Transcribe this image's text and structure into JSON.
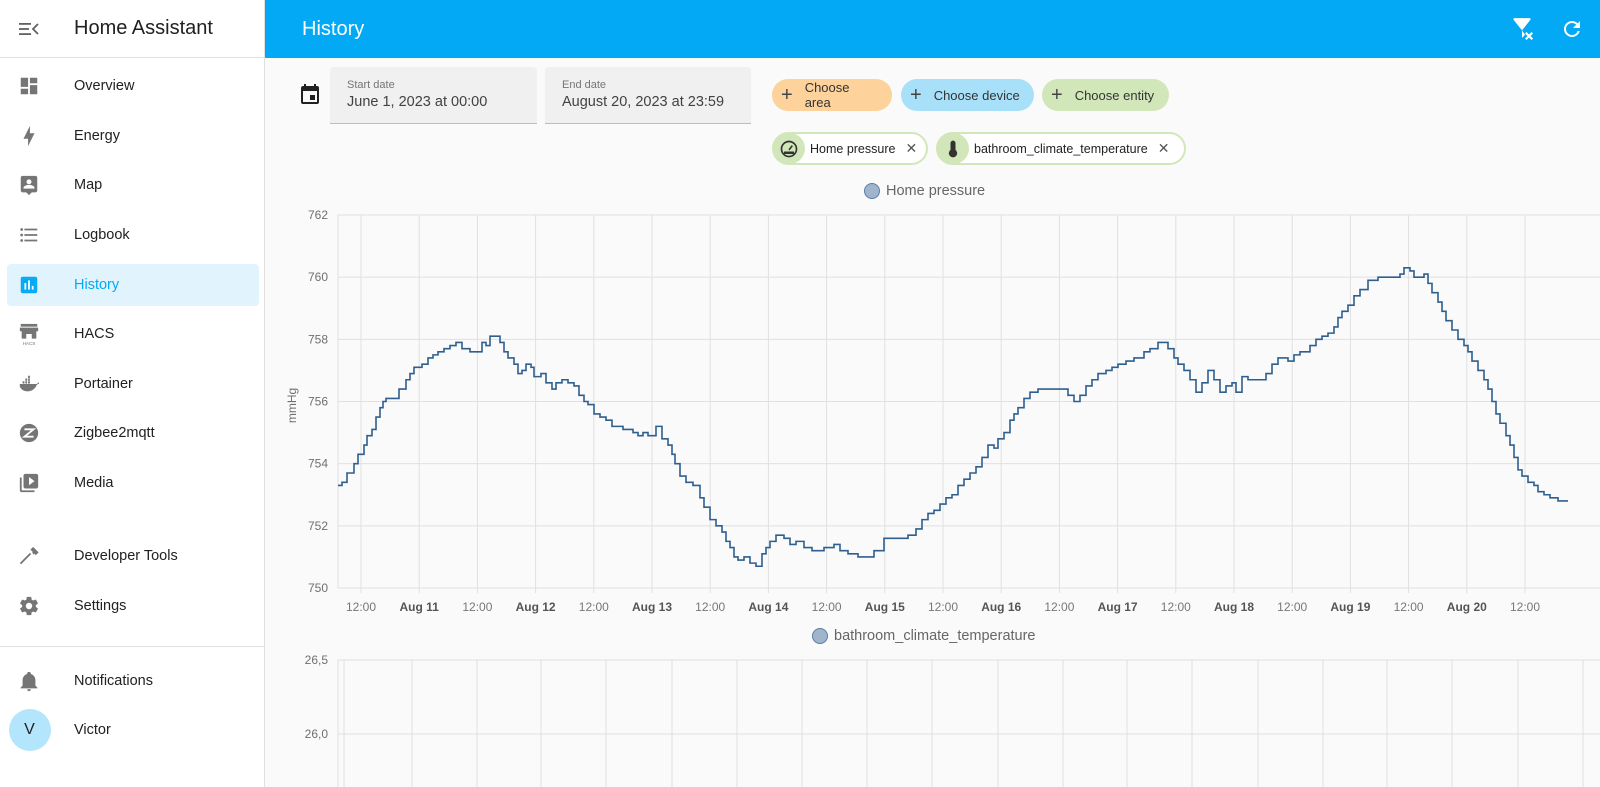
{
  "sidebar": {
    "title": "Home Assistant",
    "items": [
      {
        "label": "Overview",
        "icon": "dashboard-icon"
      },
      {
        "label": "Energy",
        "icon": "lightning-bolt-icon"
      },
      {
        "label": "Map",
        "icon": "map-account-icon"
      },
      {
        "label": "Logbook",
        "icon": "format-list-icon"
      },
      {
        "label": "History",
        "icon": "chart-box-icon",
        "active": true
      },
      {
        "label": "HACS",
        "icon": "hacs-store-icon"
      },
      {
        "label": "Portainer",
        "icon": "docker-icon"
      },
      {
        "label": "Zigbee2mqtt",
        "icon": "zigbee-icon"
      },
      {
        "label": "Media",
        "icon": "play-box-multiple-icon"
      },
      {
        "label": "Developer Tools",
        "icon": "hammer-icon"
      },
      {
        "label": "Settings",
        "icon": "cog-icon"
      }
    ],
    "notifications": "Notifications",
    "user": {
      "name": "Victor",
      "initial": "V"
    }
  },
  "header": {
    "title": "History",
    "actions": [
      {
        "icon": "filter-remove-icon"
      },
      {
        "icon": "refresh-icon"
      }
    ]
  },
  "filters": {
    "start_date": {
      "label": "Start date",
      "value": "June 1, 2023 at 00:00"
    },
    "end_date": {
      "label": "End date",
      "value": "August 20, 2023 at 23:59"
    },
    "choose_area": "Choose area",
    "choose_device": "Choose device",
    "choose_entity": "Choose entity",
    "selected_entities": [
      {
        "name": "Home pressure",
        "icon": "gauge-icon"
      },
      {
        "name": "bathroom_climate_temperature",
        "icon": "thermometer-icon"
      }
    ]
  },
  "colors": {
    "accent": "#03a9f4",
    "line": "#2e5f8f",
    "area_chip": "#fdd29b",
    "device_chip": "#a9e0f9",
    "entity_chip": "#d2e7b9"
  },
  "chart_data": [
    {
      "type": "line",
      "title": "Home pressure",
      "legend": [
        "Home pressure"
      ],
      "xlabel": "",
      "ylabel": "mmHg",
      "ylim": [
        750,
        762
      ],
      "yticks": [
        "762",
        "760",
        "758",
        "756",
        "754",
        "752",
        "750"
      ],
      "xticks": [
        "12:00",
        "Aug 11",
        "12:00",
        "Aug 12",
        "12:00",
        "Aug 13",
        "12:00",
        "Aug 14",
        "12:00",
        "Aug 15",
        "12:00",
        "Aug 16",
        "12:00",
        "Aug 17",
        "12:00",
        "Aug 18",
        "12:00",
        "Aug 19",
        "12:00",
        "Aug 20",
        "12:00"
      ],
      "grid": true,
      "step": true,
      "series": [
        {
          "name": "Home pressure",
          "points": [
            [
              0,
              753.3
            ],
            [
              4,
              753.4
            ],
            [
              9,
              753.7
            ],
            [
              16,
              754.0
            ],
            [
              20,
              754.3
            ],
            [
              26,
              754.6
            ],
            [
              29,
              754.9
            ],
            [
              34,
              755.1
            ],
            [
              38,
              755.5
            ],
            [
              42,
              755.8
            ],
            [
              45,
              756.0
            ],
            [
              48,
              756.1
            ],
            [
              61,
              756.4
            ],
            [
              68,
              756.7
            ],
            [
              72,
              756.9
            ],
            [
              76,
              757.1
            ],
            [
              84,
              757.2
            ],
            [
              90,
              757.4
            ],
            [
              95,
              757.5
            ],
            [
              100,
              757.6
            ],
            [
              106,
              757.7
            ],
            [
              112,
              757.8
            ],
            [
              118,
              757.9
            ],
            [
              124,
              757.7
            ],
            [
              132,
              757.6
            ],
            [
              144,
              757.9
            ],
            [
              148,
              757.8
            ],
            [
              152,
              758.1
            ],
            [
              162,
              757.9
            ],
            [
              166,
              757.6
            ],
            [
              170,
              757.4
            ],
            [
              176,
              757.2
            ],
            [
              180,
              756.9
            ],
            [
              184,
              757.0
            ],
            [
              188,
              757.2
            ],
            [
              193,
              757.1
            ],
            [
              196,
              756.8
            ],
            [
              203,
              756.9
            ],
            [
              208,
              756.6
            ],
            [
              214,
              756.4
            ],
            [
              218,
              756.6
            ],
            [
              224,
              756.7
            ],
            [
              230,
              756.6
            ],
            [
              236,
              756.5
            ],
            [
              241,
              756.2
            ],
            [
              246,
              756.0
            ],
            [
              250,
              755.9
            ],
            [
              256,
              755.6
            ],
            [
              262,
              755.5
            ],
            [
              268,
              755.4
            ],
            [
              274,
              755.2
            ],
            [
              285,
              755.1
            ],
            [
              295,
              755.0
            ],
            [
              300,
              754.9
            ],
            [
              305,
              755.0
            ],
            [
              310,
              754.9
            ],
            [
              318,
              755.2
            ],
            [
              324,
              754.8
            ],
            [
              330,
              754.6
            ],
            [
              334,
              754.3
            ],
            [
              337,
              754.0
            ],
            [
              342,
              753.6
            ],
            [
              348,
              753.4
            ],
            [
              355,
              753.3
            ],
            [
              362,
              752.9
            ],
            [
              366,
              752.6
            ],
            [
              372,
              752.2
            ],
            [
              378,
              752.0
            ],
            [
              384,
              751.8
            ],
            [
              388,
              751.5
            ],
            [
              392,
              751.3
            ],
            [
              396,
              751.0
            ],
            [
              400,
              750.9
            ],
            [
              406,
              751.0
            ],
            [
              412,
              750.8
            ],
            [
              418,
              750.7
            ],
            [
              424,
              751.1
            ],
            [
              428,
              751.3
            ],
            [
              432,
              751.5
            ],
            [
              438,
              751.7
            ],
            [
              446,
              751.6
            ],
            [
              452,
              751.4
            ],
            [
              458,
              751.5
            ],
            [
              466,
              751.3
            ],
            [
              474,
              751.2
            ],
            [
              486,
              751.3
            ],
            [
              496,
              751.4
            ],
            [
              502,
              751.2
            ],
            [
              510,
              751.1
            ],
            [
              520,
              751.0
            ],
            [
              536,
              751.2
            ],
            [
              546,
              751.6
            ],
            [
              570,
              751.7
            ],
            [
              578,
              751.9
            ],
            [
              584,
              752.2
            ],
            [
              590,
              752.4
            ],
            [
              596,
              752.5
            ],
            [
              602,
              752.7
            ],
            [
              608,
              752.9
            ],
            [
              614,
              753.0
            ],
            [
              620,
              753.3
            ],
            [
              626,
              753.5
            ],
            [
              632,
              753.7
            ],
            [
              638,
              753.9
            ],
            [
              644,
              754.2
            ],
            [
              650,
              754.6
            ],
            [
              656,
              754.5
            ],
            [
              660,
              754.8
            ],
            [
              666,
              755.0
            ],
            [
              672,
              755.4
            ],
            [
              676,
              755.6
            ],
            [
              680,
              755.8
            ],
            [
              686,
              756.1
            ],
            [
              692,
              756.3
            ],
            [
              700,
              756.4
            ],
            [
              730,
              756.2
            ],
            [
              736,
              756.0
            ],
            [
              742,
              756.2
            ],
            [
              748,
              756.5
            ],
            [
              754,
              756.7
            ],
            [
              760,
              756.9
            ],
            [
              768,
              757.0
            ],
            [
              774,
              757.1
            ],
            [
              780,
              757.2
            ],
            [
              788,
              757.3
            ],
            [
              796,
              757.4
            ],
            [
              806,
              757.6
            ],
            [
              812,
              757.7
            ],
            [
              820,
              757.9
            ],
            [
              830,
              757.7
            ],
            [
              836,
              757.4
            ],
            [
              840,
              757.2
            ],
            [
              846,
              757.0
            ],
            [
              852,
              756.7
            ],
            [
              858,
              756.3
            ],
            [
              864,
              756.6
            ],
            [
              870,
              757.0
            ],
            [
              876,
              756.7
            ],
            [
              882,
              756.3
            ],
            [
              888,
              756.5
            ],
            [
              894,
              756.6
            ],
            [
              898,
              756.3
            ],
            [
              904,
              756.8
            ],
            [
              910,
              756.7
            ],
            [
              928,
              756.9
            ],
            [
              934,
              757.2
            ],
            [
              940,
              757.4
            ],
            [
              950,
              757.3
            ],
            [
              956,
              757.5
            ],
            [
              962,
              757.6
            ],
            [
              972,
              757.8
            ],
            [
              978,
              758.0
            ],
            [
              984,
              758.1
            ],
            [
              990,
              758.2
            ],
            [
              996,
              758.4
            ],
            [
              1000,
              758.7
            ],
            [
              1004,
              758.9
            ],
            [
              1010,
              759.1
            ],
            [
              1016,
              759.4
            ],
            [
              1022,
              759.6
            ],
            [
              1030,
              759.9
            ],
            [
              1040,
              760.0
            ],
            [
              1062,
              760.1
            ],
            [
              1066,
              760.3
            ],
            [
              1072,
              760.2
            ],
            [
              1076,
              760.0
            ],
            [
              1086,
              760.1
            ],
            [
              1090,
              759.8
            ],
            [
              1094,
              759.5
            ],
            [
              1100,
              759.2
            ],
            [
              1104,
              758.9
            ],
            [
              1108,
              758.6
            ],
            [
              1114,
              758.3
            ],
            [
              1120,
              758.0
            ],
            [
              1126,
              757.8
            ],
            [
              1130,
              757.6
            ],
            [
              1134,
              757.3
            ],
            [
              1140,
              757.0
            ],
            [
              1146,
              756.7
            ],
            [
              1150,
              756.4
            ],
            [
              1154,
              756.0
            ],
            [
              1158,
              755.6
            ],
            [
              1162,
              755.3
            ],
            [
              1168,
              754.9
            ],
            [
              1172,
              754.6
            ],
            [
              1176,
              754.2
            ],
            [
              1180,
              753.8
            ],
            [
              1184,
              753.6
            ],
            [
              1190,
              753.4
            ],
            [
              1196,
              753.3
            ],
            [
              1200,
              753.1
            ],
            [
              1206,
              753.0
            ],
            [
              1212,
              752.9
            ],
            [
              1220,
              752.8
            ],
            [
              1230,
              752.8
            ]
          ]
        }
      ]
    },
    {
      "type": "line",
      "title": "bathroom_climate_temperature",
      "legend": [
        "bathroom_climate_temperature"
      ],
      "ylabel": "",
      "yticks": [
        "26,5",
        "26,0"
      ],
      "grid": true,
      "series": [
        {
          "name": "bathroom_climate_temperature",
          "points": []
        }
      ]
    }
  ]
}
